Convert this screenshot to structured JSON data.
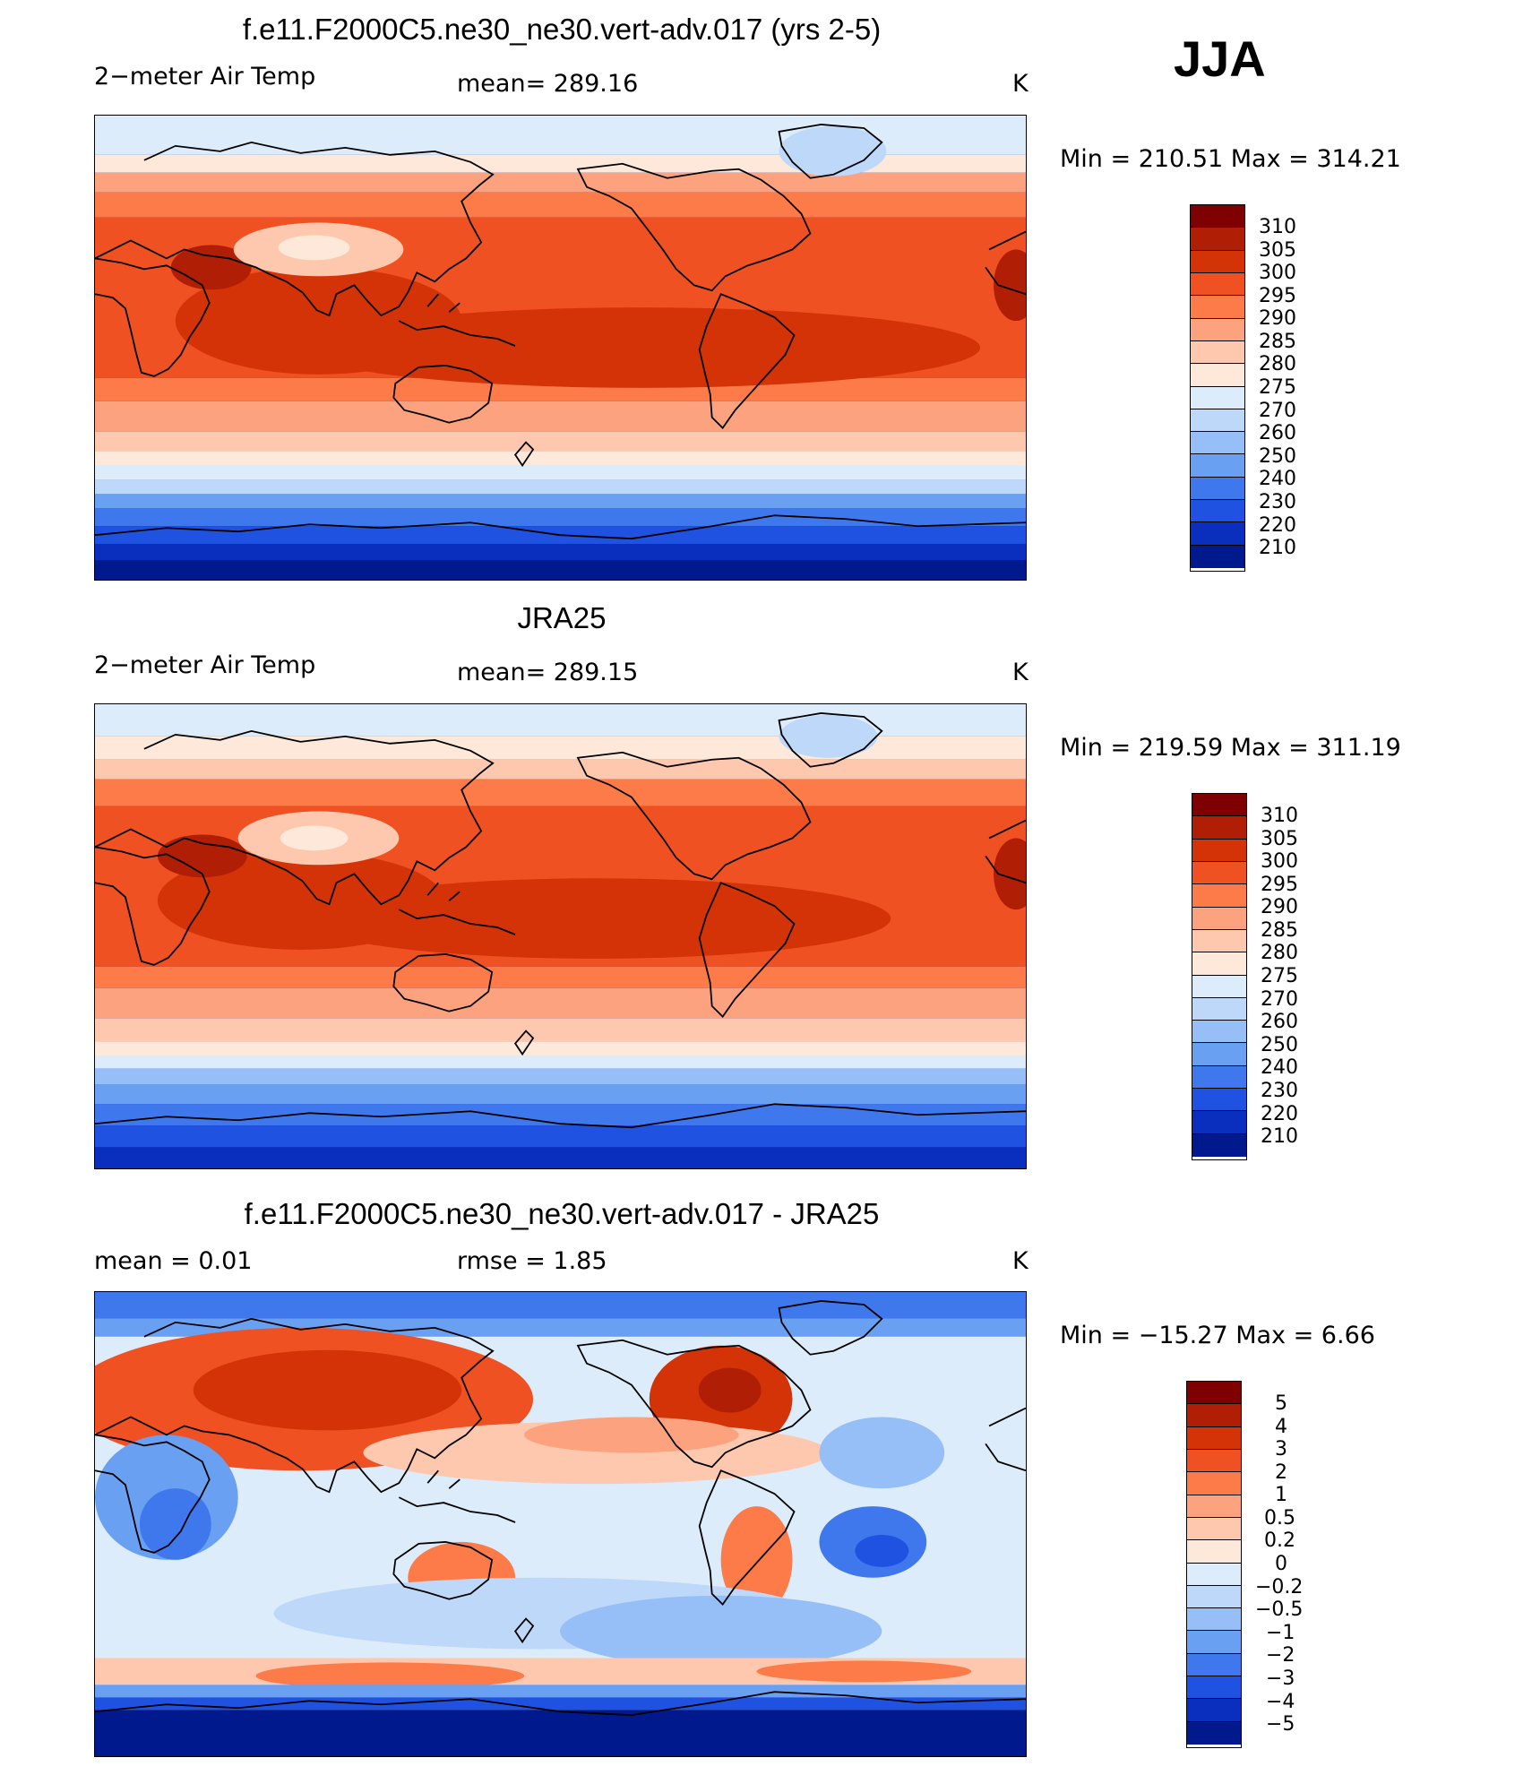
{
  "season": "JJA",
  "panels": [
    {
      "title": "f.e11.F2000C5.ne30_ne30.vert-adv.017 (yrs 2-5)",
      "left_label": "2−meter Air Temp",
      "center_label": "mean=  289.16",
      "units": "K",
      "minmax": "Min  =  210.51  Max  =  314.21",
      "colorbar_labels": [
        "310",
        "305",
        "300",
        "295",
        "290",
        "285",
        "280",
        "275",
        "270",
        "260",
        "250",
        "240",
        "230",
        "220",
        "210"
      ]
    },
    {
      "title": "JRA25",
      "left_label": "2−meter Air Temp",
      "center_label": "mean=  289.15",
      "units": "K",
      "minmax": "Min  =  219.59  Max  =  311.19",
      "colorbar_labels": [
        "310",
        "305",
        "300",
        "295",
        "290",
        "285",
        "280",
        "275",
        "270",
        "260",
        "250",
        "240",
        "230",
        "220",
        "210"
      ]
    },
    {
      "title": "f.e11.F2000C5.ne30_ne30.vert-adv.017 - JRA25",
      "left_label": "mean  =      0.01",
      "center_label": "rmse  =      1.85",
      "units": "K",
      "minmax": "Min  =  −15.27  Max  =      6.66",
      "colorbar_labels": [
        "5",
        "4",
        "3",
        "2",
        "1",
        "0.5",
        "0.2",
        "0",
        "−0.2",
        "−0.5",
        "−1",
        "−2",
        "−3",
        "−4",
        "−5"
      ]
    }
  ],
  "colors": {
    "abs_scale": [
      "#7f0000",
      "#b01e06",
      "#d33307",
      "#ef5123",
      "#fd7a49",
      "#fca27e",
      "#fdc8ad",
      "#fde8d9",
      "#dcecfb",
      "#bed8fa",
      "#96bff7",
      "#6aa0f2",
      "#3f78ec",
      "#1f52e0",
      "#0a2fbe",
      "#001a8e"
    ],
    "diff_scale": [
      "#7f0000",
      "#b01e06",
      "#d33307",
      "#ef5123",
      "#fd7a49",
      "#fca27e",
      "#fdc8ad",
      "#fde8d9",
      "#dcecfb",
      "#bed8fa",
      "#96bff7",
      "#6aa0f2",
      "#3f78ec",
      "#1f52e0",
      "#0a2fbe",
      "#001a8e"
    ]
  }
}
